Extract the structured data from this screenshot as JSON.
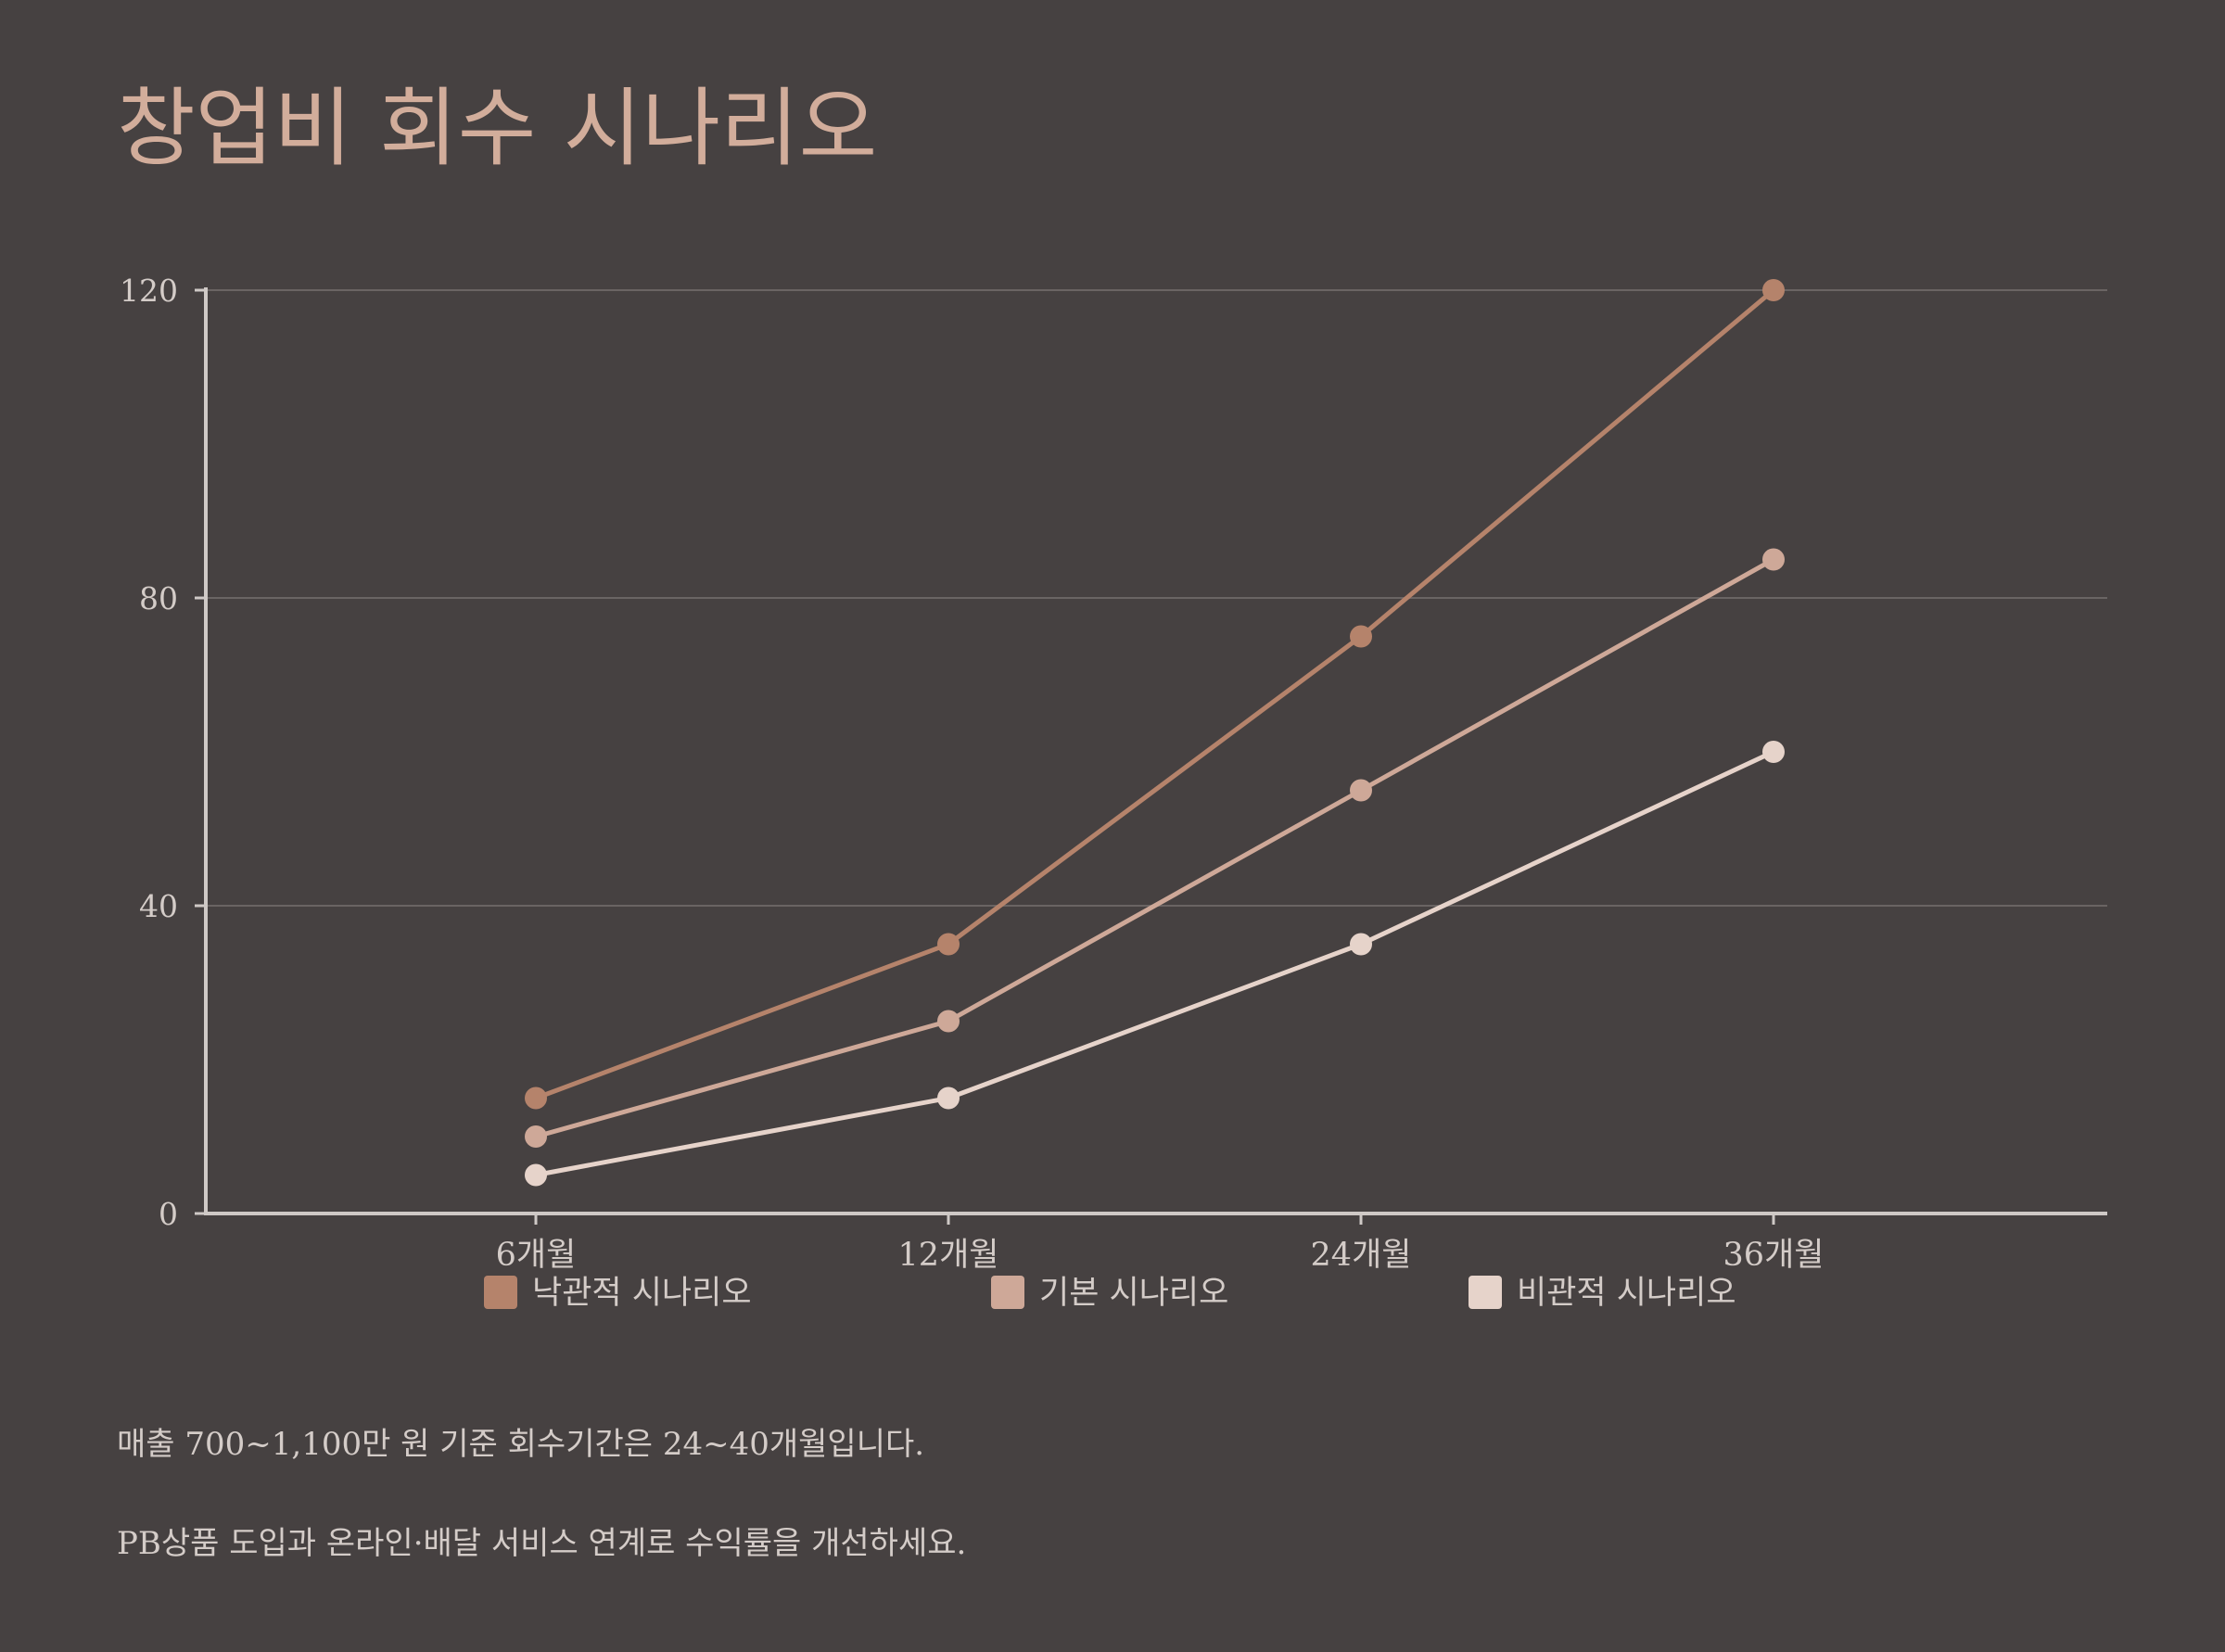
{
  "title": "창업비 회수 시나리오",
  "chart_data": {
    "type": "line",
    "categories": [
      "6개월",
      "12개월",
      "24개월",
      "36개월"
    ],
    "series": [
      {
        "name": "낙관적 시나리오",
        "values": [
          15,
          35,
          75,
          120
        ],
        "color": "#b5836b"
      },
      {
        "name": "기본 시나리오",
        "values": [
          10,
          25,
          55,
          85
        ],
        "color": "#cea898"
      },
      {
        "name": "비관적 시나리오",
        "values": [
          5,
          15,
          35,
          60
        ],
        "color": "#e6d3ca"
      }
    ],
    "yticks": [
      0,
      40,
      80,
      120
    ],
    "ylim": [
      0,
      120
    ],
    "grid": true,
    "legend_position": "bottom"
  },
  "notes": [
    "매출 700~1,100만 원 기준 회수기간은 24~40개월입니다.",
    "PB상품 도입과 온라인·배달 서비스 연계로 수익률을 개선하세요."
  ],
  "colors": {
    "background": "#464141",
    "title": "#d2ad9b",
    "axis": "#cfc9c6",
    "grid": "#6a6463",
    "text": "#d4ccc8"
  }
}
